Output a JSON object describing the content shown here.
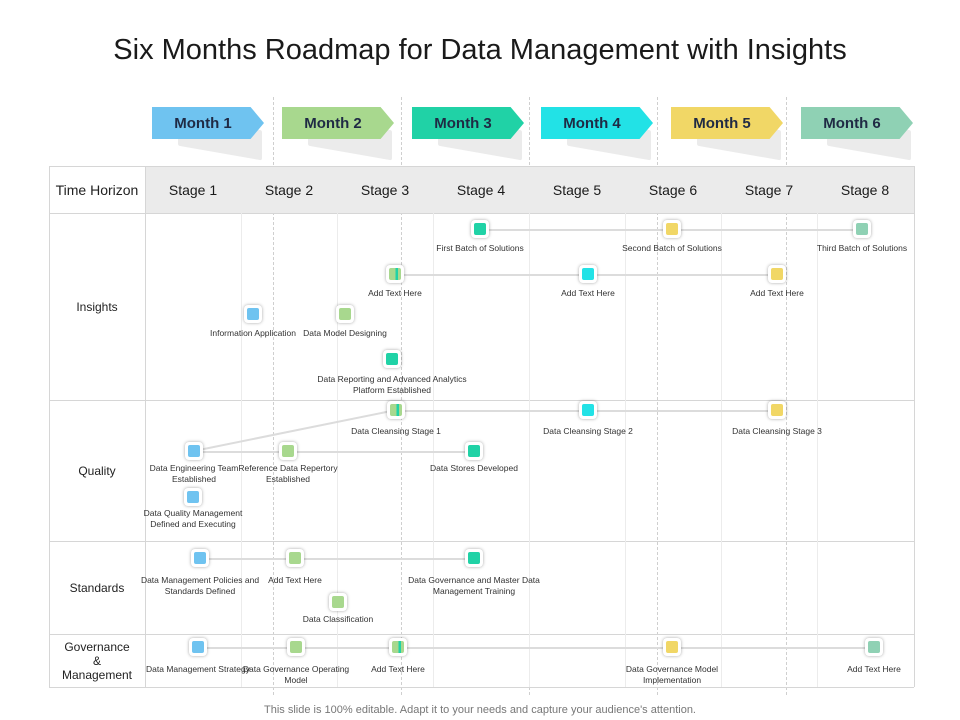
{
  "title": "Six Months Roadmap for Data Management with Insights",
  "months": [
    {
      "label": "Month 1",
      "color": "#6fc3f0"
    },
    {
      "label": "Month 2",
      "color": "#a8d88e"
    },
    {
      "label": "Month 3",
      "color": "#20d2a6"
    },
    {
      "label": "Month 4",
      "color": "#22e2e6"
    },
    {
      "label": "Month 5",
      "color": "#f1d766"
    },
    {
      "label": "Month 6",
      "color": "#8fd1b4"
    }
  ],
  "table": {
    "time_horizon": "Time Horizon",
    "stages": [
      "Stage 1",
      "Stage 2",
      "Stage 3",
      "Stage 4",
      "Stage 5",
      "Stage 6",
      "Stage 7",
      "Stage 8"
    ],
    "rows": [
      "Insights",
      "Quality",
      "Standards",
      "Governance & Management"
    ]
  },
  "colors": {
    "blue": "#6fc3f0",
    "green": "#a8d88e",
    "teal": "#20d2a6",
    "cyan": "#22e2e6",
    "yellow": "#f1d766",
    "mint": "#8fd1b4"
  },
  "milestones": {
    "insights": [
      {
        "id": "first_batch",
        "text": "First Batch of Solutions",
        "color": "teal"
      },
      {
        "id": "second_batch",
        "text": "Second Batch of Solutions",
        "color": "yellow"
      },
      {
        "id": "third_batch",
        "text": "Third Batch of Solutions",
        "color": "mint"
      },
      {
        "id": "add_text_1",
        "text": "Add Text Here",
        "color": "split"
      },
      {
        "id": "add_text_2",
        "text": "Add Text Here",
        "color": "cyan"
      },
      {
        "id": "add_text_3",
        "text": "Add Text Here",
        "color": "yellow"
      },
      {
        "id": "info_app",
        "text": "Information Application",
        "color": "blue"
      },
      {
        "id": "data_model",
        "text": "Data Model Designing",
        "color": "green"
      },
      {
        "id": "data_reporting",
        "text": "Data Reporting and Advanced Analytics Platform Established",
        "color": "teal"
      }
    ],
    "quality": [
      {
        "id": "cleansing_1",
        "text": "Data Cleansing Stage 1",
        "color": "split"
      },
      {
        "id": "cleansing_2",
        "text": "Data Cleansing Stage 2",
        "color": "cyan"
      },
      {
        "id": "cleansing_3",
        "text": "Data Cleansing Stage 3",
        "color": "yellow"
      },
      {
        "id": "engineering",
        "text": "Data Engineering Team Established",
        "color": "blue"
      },
      {
        "id": "reference",
        "text": "Reference Data Repertory Established",
        "color": "green"
      },
      {
        "id": "stores",
        "text": "Data Stores Developed",
        "color": "teal"
      },
      {
        "id": "dq_mgmt",
        "text": "Data Quality Management Defined and Executing",
        "color": "blue"
      }
    ],
    "standards": [
      {
        "id": "policies",
        "text": "Data Management Policies and Standards Defined",
        "color": "blue"
      },
      {
        "id": "std_add_text",
        "text": "Add Text Here",
        "color": "green"
      },
      {
        "id": "master_training",
        "text": "Data Governance and Master Data Management Training",
        "color": "teal"
      },
      {
        "id": "classification",
        "text": "Data Classification",
        "color": "green"
      }
    ],
    "governance": [
      {
        "id": "strategy",
        "text": "Data Management Strategy",
        "color": "blue"
      },
      {
        "id": "operating_model",
        "text": "Data Governance Operating Model",
        "color": "green"
      },
      {
        "id": "gov_add_text_1",
        "text": "Add Text Here",
        "color": "split"
      },
      {
        "id": "model_impl",
        "text": "Data Governance Model Implementation",
        "color": "yellow"
      },
      {
        "id": "gov_add_text_2",
        "text": "Add Text Here",
        "color": "mint"
      }
    ]
  },
  "footer": "This slide is 100% editable. Adapt it to your needs and capture your audience's attention."
}
